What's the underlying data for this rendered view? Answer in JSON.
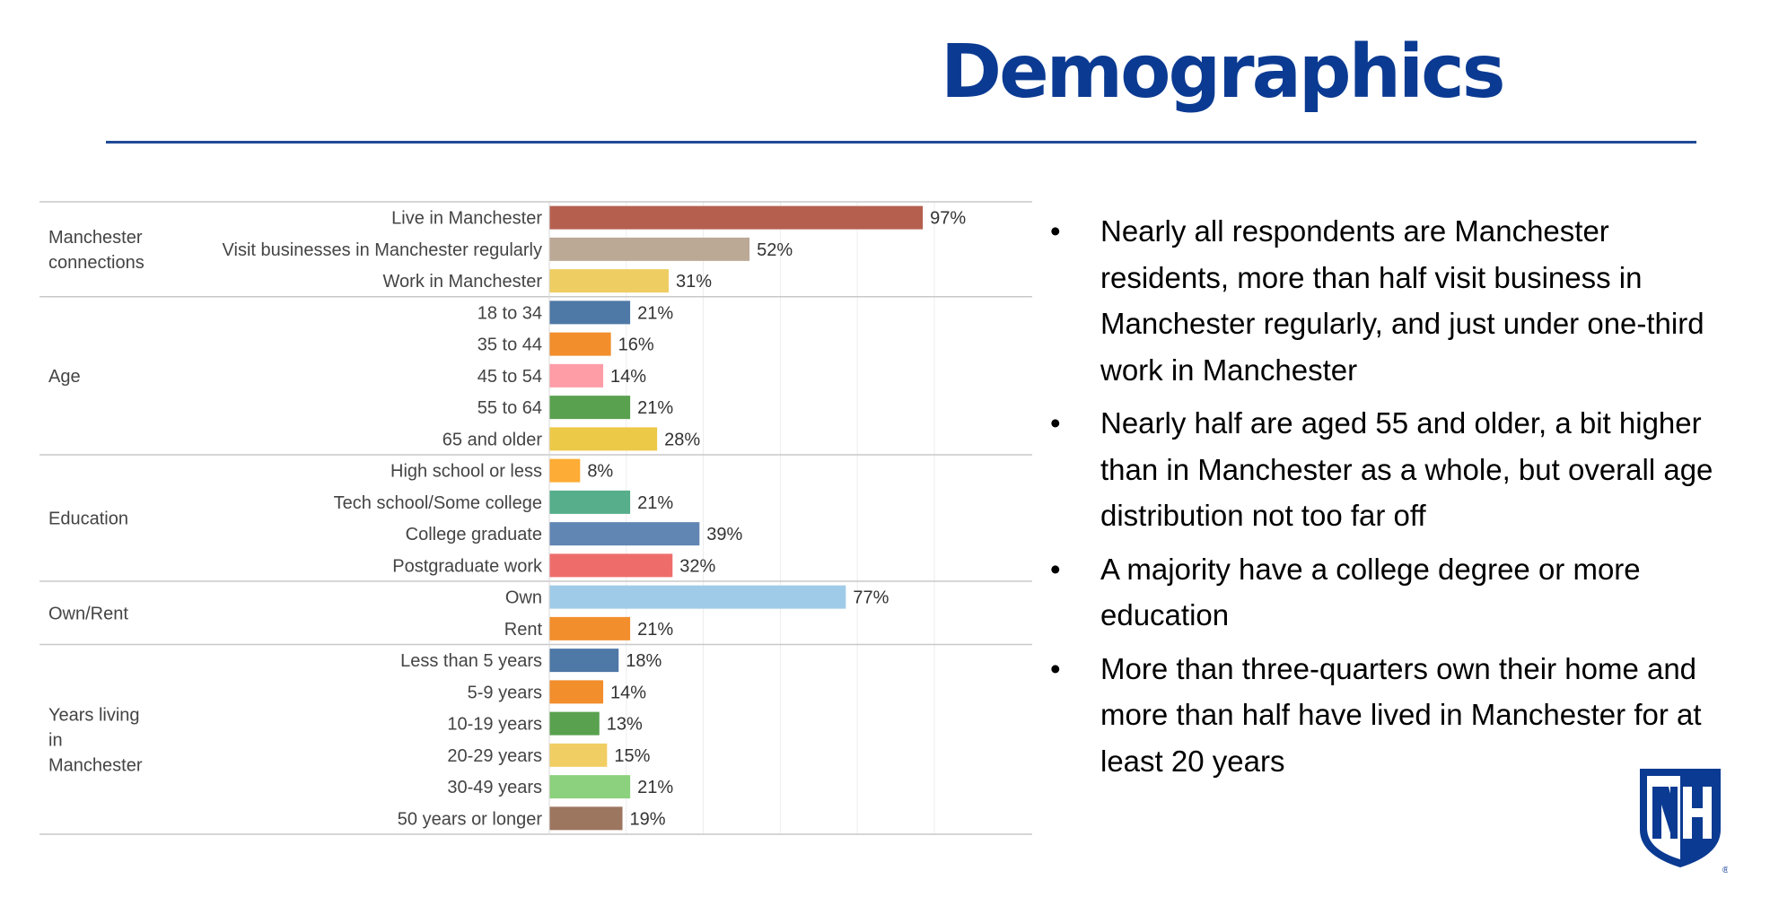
{
  "slide": {
    "title": "Demographics",
    "bullets": [
      "Nearly all respondents are Manchester residents, more than half visit business in Manchester regularly, and just under one-third work in Manchester",
      "Nearly half are aged 55 and older, a bit higher than in Manchester as a whole, but overall age distribution not too far off",
      "A majority have a college degree or more education",
      "More than three-quarters own their home and more than half have lived in Manchester for at least 20 years"
    ],
    "bullet_glyph": "•",
    "logo": {
      "text": "NH",
      "registered": "®",
      "icon": "unh-shield-logo-icon"
    }
  },
  "colors": {
    "title": "#0b3a92",
    "rule": "#1f4a96",
    "logo": "#0b3a92"
  },
  "chart_data": {
    "type": "bar",
    "orientation": "horizontal",
    "title": "",
    "xlabel": "",
    "ylabel": "",
    "xlim": [
      0,
      100
    ],
    "grid": true,
    "value_format": "percent",
    "groups": [
      {
        "name": "Manchester connections",
        "categories": [
          {
            "label": "Live in Manchester",
            "value": 97,
            "color": "#b5604f"
          },
          {
            "label": "Visit businesses in Manchester regularly",
            "value": 52,
            "color": "#bba996"
          },
          {
            "label": "Work in Manchester",
            "value": 31,
            "color": "#eecd62"
          }
        ]
      },
      {
        "name": "Age",
        "categories": [
          {
            "label": "18 to 34",
            "value": 21,
            "color": "#4e78a6"
          },
          {
            "label": "35 to 44",
            "value": 16,
            "color": "#f28e2c"
          },
          {
            "label": "45 to 54",
            "value": 14,
            "color": "#ff9da7"
          },
          {
            "label": "55 to 64",
            "value": 21,
            "color": "#59a14f"
          },
          {
            "label": "65 and older",
            "value": 28,
            "color": "#edc948"
          }
        ]
      },
      {
        "name": "Education",
        "categories": [
          {
            "label": "High school or less",
            "value": 8,
            "color": "#fdac35"
          },
          {
            "label": "Tech school/Some college",
            "value": 21,
            "color": "#56ae8b"
          },
          {
            "label": "College graduate",
            "value": 39,
            "color": "#6286b3"
          },
          {
            "label": "Postgraduate work",
            "value": 32,
            "color": "#ee6d6b"
          }
        ]
      },
      {
        "name": "Own/Rent",
        "categories": [
          {
            "label": "Own",
            "value": 77,
            "color": "#a0cbe8"
          },
          {
            "label": "Rent",
            "value": 21,
            "color": "#f28e2c"
          }
        ]
      },
      {
        "name": "Years living in Manchester",
        "name_lines": [
          "Years living",
          "in",
          "Manchester"
        ],
        "categories": [
          {
            "label": "Less than 5 years",
            "value": 18,
            "color": "#4e78a6"
          },
          {
            "label": "5-9 years",
            "value": 14,
            "color": "#f28e2c"
          },
          {
            "label": "10-19 years",
            "value": 13,
            "color": "#59a14f"
          },
          {
            "label": "20-29 years",
            "value": 15,
            "color": "#f1ce63"
          },
          {
            "label": "30-49 years",
            "value": 21,
            "color": "#8cd17d"
          },
          {
            "label": "50 years or longer",
            "value": 19,
            "color": "#9d7660"
          }
        ]
      }
    ]
  }
}
